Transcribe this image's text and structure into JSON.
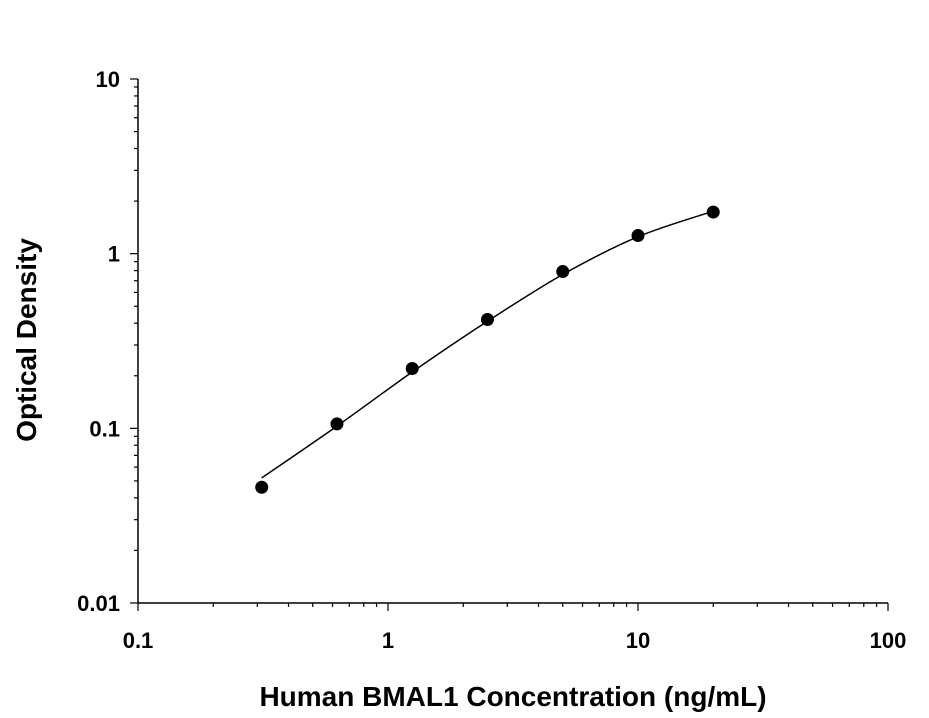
{
  "chart_data": {
    "type": "scatter",
    "title": "",
    "xlabel": "Human BMAL1 Concentration (ng/mL)",
    "ylabel": "Optical Density",
    "x_scale": "log",
    "y_scale": "log",
    "xlim": [
      0.1,
      100
    ],
    "ylim": [
      0.01,
      10
    ],
    "x_tick_labels": [
      "0.1",
      "1",
      "10",
      "100"
    ],
    "y_tick_labels": [
      "0.01",
      "0.1",
      "1",
      "10"
    ],
    "grid": false,
    "legend": "none",
    "series": [
      {
        "x": [
          0.3125,
          0.625,
          1.25,
          2.5,
          5,
          10,
          20
        ],
        "y": [
          0.046,
          0.106,
          0.22,
          0.42,
          0.79,
          1.27,
          1.73
        ]
      }
    ],
    "fit_curve": {
      "x": [
        0.3125,
        0.625,
        1.25,
        2.5,
        5,
        10,
        20
      ],
      "y": [
        0.052,
        0.103,
        0.21,
        0.41,
        0.76,
        1.25,
        1.75
      ]
    },
    "colors": {
      "marker": "#000000",
      "line": "#000000",
      "axis": "#000000"
    }
  }
}
